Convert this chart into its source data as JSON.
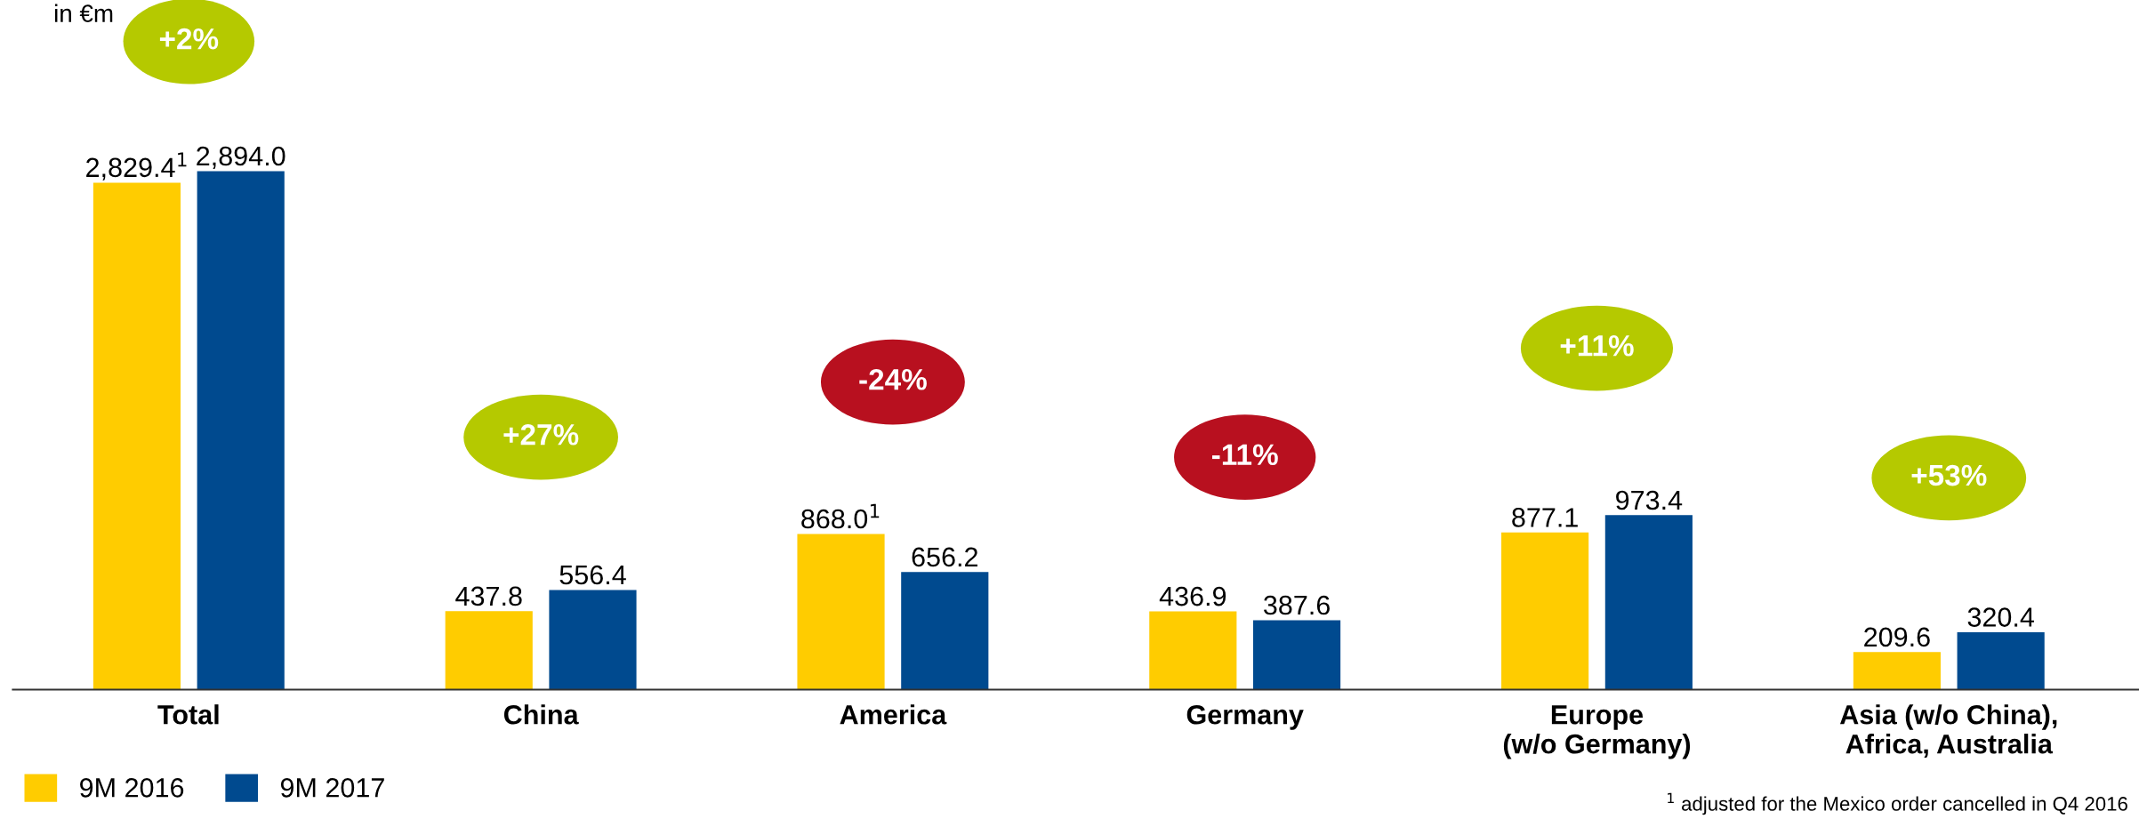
{
  "chart_data": {
    "type": "bar",
    "categories": [
      "Total",
      "China",
      "America",
      "Germany",
      "Europe\n(w/o Germany)",
      "Asia (w/o China),\nAfrica, Australia"
    ],
    "series": [
      {
        "name": "9M 2016",
        "color": "#ffcc00",
        "values": [
          2829.4,
          437.8,
          868.0,
          436.9,
          877.1,
          209.6
        ],
        "value_labels": [
          "2,829.4$^{1}$",
          "437.8",
          "868.0$^{1}$",
          "436.9",
          "877.1",
          "209.6"
        ]
      },
      {
        "name": "9M 2017",
        "color": "#004a8f",
        "values": [
          2894.0,
          556.4,
          656.2,
          387.6,
          973.4,
          320.4
        ],
        "value_labels": [
          "2,894.0",
          "556.4",
          "656.2",
          "387.6",
          "973.4",
          "320.4"
        ]
      }
    ],
    "legend": "bottom left",
    "annotations": [
      "+2%",
      "+27%",
      "-24%",
      "-11%",
      "+11%",
      "+53%",
      "in €m",
      "$^{1}$ adjusted for the Mexico order cancelled in Q4 2016"
    ]
  }
}
